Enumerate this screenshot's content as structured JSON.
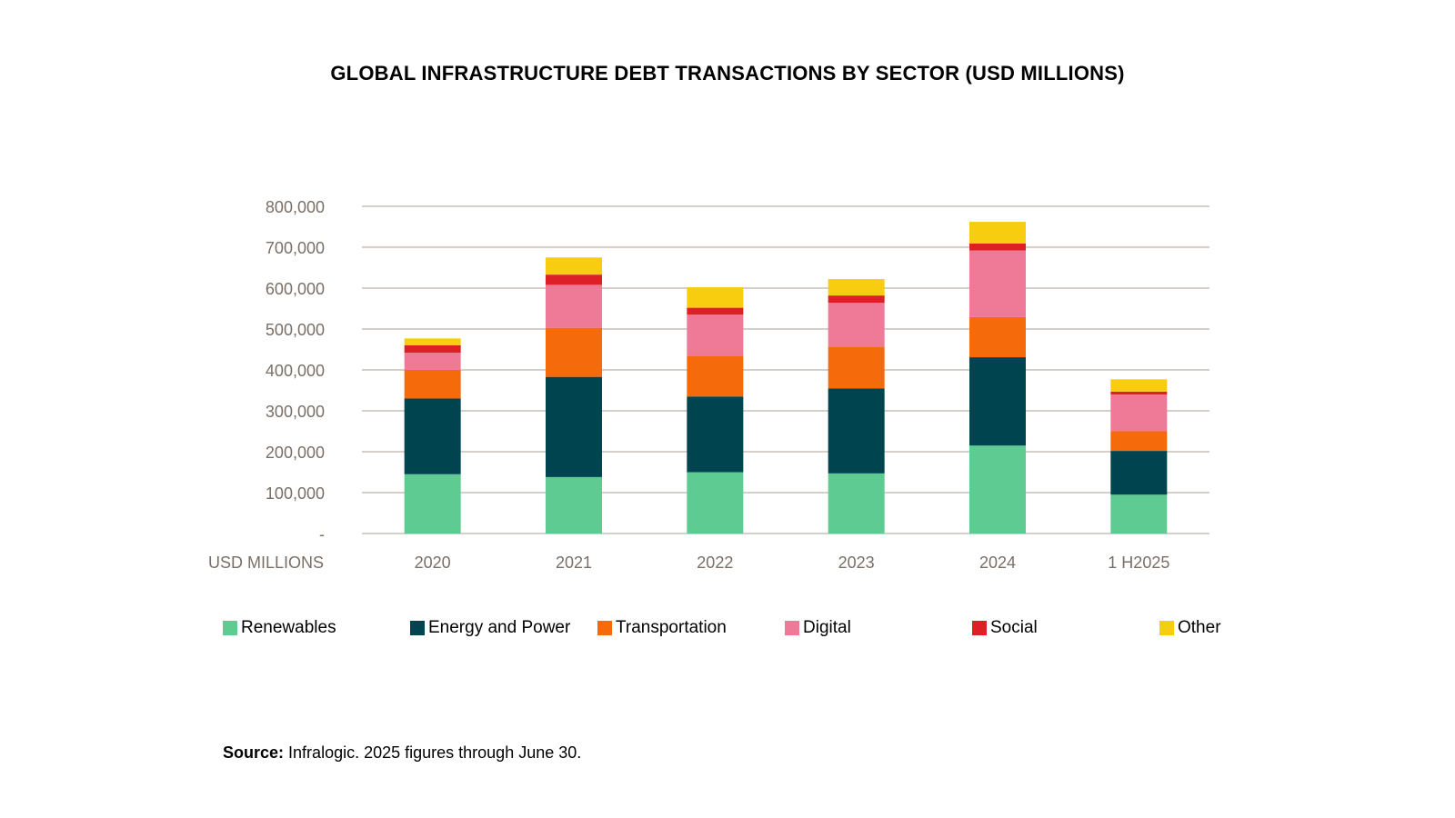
{
  "chart_data": {
    "type": "bar",
    "stacked": true,
    "title": "GLOBAL INFRASTRUCTURE DEBT TRANSACTIONS BY SECTOR (USD MILLIONS)",
    "ylabel": "USD MILLIONS",
    "ylim": [
      0,
      800000
    ],
    "yticks": [
      0,
      100000,
      200000,
      300000,
      400000,
      500000,
      600000,
      700000,
      800000
    ],
    "ytick_labels": [
      "-",
      "100,000",
      "200,000",
      "300,000",
      "400,000",
      "500,000",
      "600,000",
      "700,000",
      "800,000"
    ],
    "grid": true,
    "legend_position": "bottom",
    "categories": [
      "2020",
      "2021",
      "2022",
      "2023",
      "2024",
      "1 H2025"
    ],
    "series": [
      {
        "name": "Renewables",
        "color": "#5ecb92",
        "values": [
          145000,
          138000,
          150000,
          147000,
          215000,
          95000
        ]
      },
      {
        "name": "Energy and Power",
        "color": "#004450",
        "values": [
          185000,
          245000,
          185000,
          208000,
          216000,
          107000
        ]
      },
      {
        "name": "Transportation",
        "color": "#f56b0b",
        "values": [
          70000,
          120000,
          100000,
          102000,
          98000,
          48000
        ]
      },
      {
        "name": "Digital",
        "color": "#ef7a98",
        "values": [
          42000,
          105000,
          100000,
          107000,
          163000,
          90000
        ]
      },
      {
        "name": "Social",
        "color": "#dd1f26",
        "values": [
          18000,
          25000,
          17000,
          18000,
          17000,
          7000
        ]
      },
      {
        "name": "Other",
        "color": "#f8cd10",
        "values": [
          17000,
          42000,
          50000,
          40000,
          53000,
          30000
        ]
      }
    ]
  },
  "source": {
    "label": "Source:",
    "text": "Infralogic. 2025 figures through June 30."
  }
}
